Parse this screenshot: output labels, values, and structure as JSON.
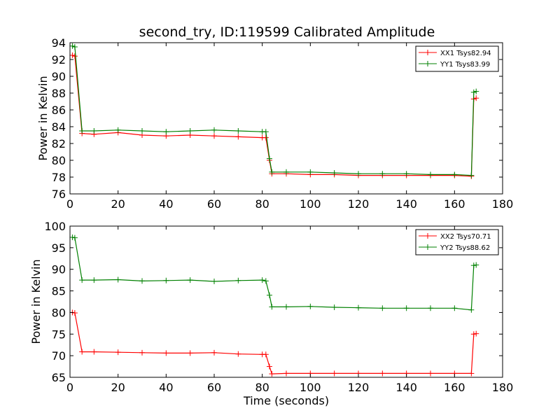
{
  "chart_data": [
    {
      "type": "line",
      "title": "second_try, ID:119599 Calibrated Amplitude",
      "xlabel": "",
      "ylabel": "Power in Kelvin",
      "xlim": [
        0,
        180
      ],
      "ylim": [
        76,
        94
      ],
      "xticks": [
        "0",
        "20",
        "40",
        "60",
        "80",
        "100",
        "120",
        "140",
        "160",
        "180"
      ],
      "yticks": [
        "76",
        "78",
        "80",
        "82",
        "84",
        "86",
        "88",
        "90",
        "92",
        "94"
      ],
      "grid": false,
      "legend_position": "top-right",
      "series": [
        {
          "name": "XX1 Tsys82.94",
          "color": "#ff0000",
          "x": [
            1,
            2,
            5,
            10,
            20,
            30,
            40,
            50,
            60,
            70,
            80,
            81.5,
            83,
            84,
            90,
            100,
            110,
            120,
            130,
            140,
            150,
            160,
            167,
            168,
            169
          ],
          "y": [
            92.5,
            92.4,
            83.2,
            83.1,
            83.3,
            83.0,
            82.9,
            83.0,
            82.9,
            82.8,
            82.7,
            82.7,
            80.0,
            78.4,
            78.4,
            78.3,
            78.3,
            78.2,
            78.2,
            78.2,
            78.2,
            78.2,
            78.1,
            87.3,
            87.4
          ]
        },
        {
          "name": "YY1 Tsys83.99",
          "color": "#008000",
          "x": [
            1,
            2,
            5,
            10,
            20,
            30,
            40,
            50,
            60,
            70,
            80,
            81.5,
            83,
            84,
            90,
            100,
            110,
            120,
            130,
            140,
            150,
            160,
            167,
            168,
            169
          ],
          "y": [
            93.6,
            93.5,
            83.5,
            83.5,
            83.6,
            83.5,
            83.4,
            83.5,
            83.6,
            83.5,
            83.4,
            83.4,
            80.2,
            78.6,
            78.6,
            78.6,
            78.5,
            78.4,
            78.4,
            78.4,
            78.3,
            78.3,
            78.2,
            88.1,
            88.2
          ]
        }
      ]
    },
    {
      "type": "line",
      "title": "",
      "xlabel": "Time (seconds)",
      "ylabel": "Power in Kelvin",
      "xlim": [
        0,
        180
      ],
      "ylim": [
        65,
        100
      ],
      "xticks": [
        "0",
        "20",
        "40",
        "60",
        "80",
        "100",
        "120",
        "140",
        "160",
        "180"
      ],
      "yticks": [
        "65",
        "70",
        "75",
        "80",
        "85",
        "90",
        "95",
        "100"
      ],
      "grid": false,
      "legend_position": "top-right",
      "series": [
        {
          "name": "XX2 Tsys70.71",
          "color": "#ff0000",
          "x": [
            1,
            2,
            5,
            10,
            20,
            30,
            40,
            50,
            60,
            70,
            80,
            81.5,
            83,
            84,
            90,
            100,
            110,
            120,
            130,
            140,
            150,
            160,
            167,
            168,
            169
          ],
          "y": [
            80.0,
            79.9,
            70.9,
            70.9,
            70.8,
            70.7,
            70.6,
            70.6,
            70.7,
            70.4,
            70.3,
            70.3,
            67.5,
            65.8,
            65.9,
            65.9,
            65.9,
            65.9,
            65.9,
            65.9,
            65.9,
            65.9,
            65.9,
            75.0,
            75.1
          ]
        },
        {
          "name": "YY2 Tsys88.62",
          "color": "#008000",
          "x": [
            1,
            2,
            5,
            10,
            20,
            30,
            40,
            50,
            60,
            70,
            80,
            81.5,
            83,
            84,
            90,
            100,
            110,
            120,
            130,
            140,
            150,
            160,
            167,
            168,
            169
          ],
          "y": [
            97.4,
            97.3,
            87.5,
            87.5,
            87.6,
            87.3,
            87.4,
            87.5,
            87.2,
            87.4,
            87.5,
            87.3,
            84.0,
            81.3,
            81.3,
            81.4,
            81.2,
            81.1,
            81.0,
            81.0,
            81.0,
            81.0,
            80.6,
            90.9,
            91.0
          ]
        }
      ]
    }
  ]
}
